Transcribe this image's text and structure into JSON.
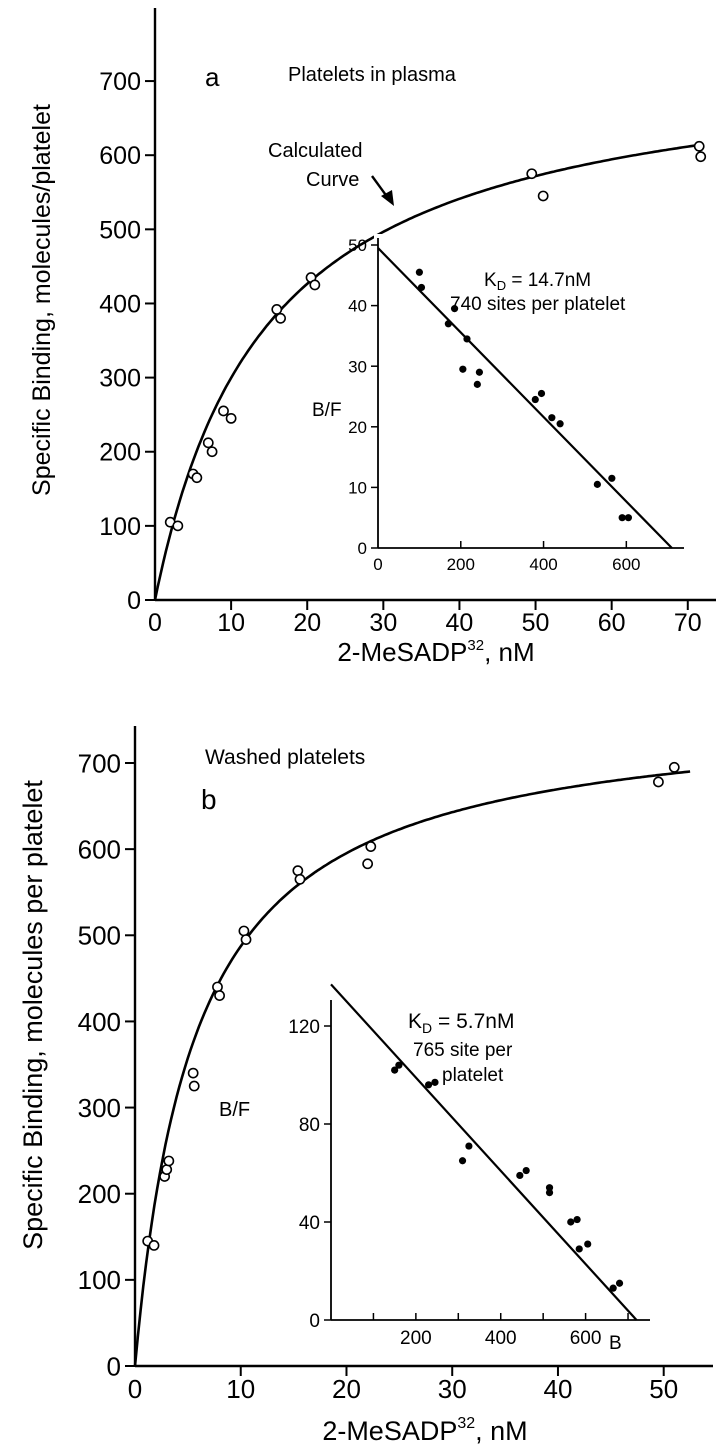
{
  "chart_data": [
    {
      "panel": "a",
      "type": "scatter",
      "annotation": "Platelets in plasma",
      "xlabel": "2-MeSADP",
      "xlabel_sup": "32",
      "xlabel_unit": ", nM",
      "ylabel": "Specific Binding, molecules/platelet",
      "xlim": [
        0,
        72
      ],
      "ylim": [
        0,
        750
      ],
      "xticks": [
        0,
        10,
        20,
        30,
        40,
        50,
        60,
        70
      ],
      "yticks": [
        0,
        100,
        200,
        300,
        400,
        500,
        600,
        700
      ],
      "curve_label": [
        "Calculated",
        "Curve"
      ],
      "series": [
        {
          "marker": "open-circle",
          "x": [
            2,
            3,
            5,
            5.5,
            7,
            7.5,
            9,
            10,
            16,
            16.5,
            20.5,
            21,
            49.5,
            51,
            71.5,
            71.7
          ],
          "y": [
            105,
            100,
            170,
            165,
            212,
            200,
            255,
            245,
            392,
            380,
            435,
            425,
            575,
            545,
            612,
            598
          ]
        }
      ],
      "calculated_curve": {
        "Bmax": 740,
        "Kd": 14.7
      },
      "inset": {
        "ylabel": "B/F",
        "kd_text": "K",
        "kd_sub": "D",
        "kd_value": " = 14.7nM",
        "sites_text": [
          "740 sites per platelet"
        ],
        "xlim": [
          0,
          720
        ],
        "ylim": [
          0,
          50
        ],
        "xticks": [
          0,
          200,
          400,
          600
        ],
        "yticks": [
          0,
          10,
          20,
          30,
          40,
          50
        ],
        "points": {
          "x": [
            100,
            105,
            170,
            185,
            205,
            215,
            240,
            245,
            380,
            395,
            420,
            440,
            530,
            565,
            590,
            605
          ],
          "y": [
            45.5,
            43,
            37,
            39.5,
            29.5,
            34.5,
            27,
            29,
            24.5,
            25.5,
            21.5,
            20.5,
            10.5,
            11.5,
            5,
            5
          ]
        },
        "fit_line": {
          "x": [
            0,
            710
          ],
          "y": [
            49.5,
            0
          ]
        }
      }
    },
    {
      "panel": "b",
      "type": "scatter",
      "annotation": "Washed platelets",
      "xlabel": "2-MeSADP",
      "xlabel_sup": "32",
      "xlabel_unit": ", nM",
      "ylabel": "Specific Binding, molecules per platelet",
      "xlim": [
        0,
        54
      ],
      "ylim": [
        0,
        750
      ],
      "xticks": [
        0,
        10,
        20,
        30,
        40,
        50
      ],
      "yticks": [
        0,
        100,
        200,
        300,
        400,
        500,
        600,
        700
      ],
      "series": [
        {
          "marker": "open-circle",
          "x": [
            1.2,
            1.8,
            2.8,
            3,
            3.2,
            5.5,
            5.6,
            7.8,
            8,
            10.3,
            10.5,
            15.4,
            15.6,
            22,
            22.3,
            49.5,
            51
          ],
          "y": [
            145,
            140,
            220,
            228,
            238,
            340,
            325,
            440,
            430,
            505,
            495,
            575,
            565,
            583,
            603,
            678,
            695
          ]
        }
      ],
      "calculated_curve": {
        "Bmax": 765,
        "Kd": 5.7
      },
      "inset": {
        "ylabel": "B/F",
        "kd_text": "K",
        "kd_sub": "D",
        "kd_value": " = 5.7nM",
        "sites_text": [
          "765 site per",
          "platelet"
        ],
        "xlabel_end": "B",
        "xlim": [
          0,
          740
        ],
        "ylim": [
          0,
          140
        ],
        "xticks": [
          200,
          400,
          600
        ],
        "xticks_unlabeled": [
          100,
          300,
          500,
          700
        ],
        "yticks": [
          0,
          40,
          80,
          120
        ],
        "points": {
          "x": [
            150,
            160,
            230,
            245,
            310,
            325,
            445,
            460,
            515,
            515,
            565,
            580,
            585,
            605,
            665,
            680
          ],
          "y": [
            102,
            104,
            96,
            97,
            65,
            71,
            59,
            61,
            52,
            54,
            40,
            41,
            29,
            31,
            13,
            15
          ]
        },
        "fit_line": {
          "x": [
            0,
            720
          ],
          "y": [
            137,
            0
          ]
        }
      }
    }
  ]
}
